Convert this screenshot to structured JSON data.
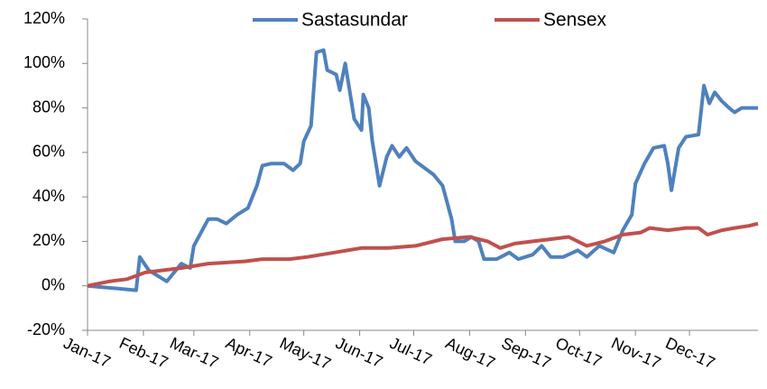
{
  "chart_data": {
    "type": "line",
    "xlim": [
      0,
      372
    ],
    "xticks": [
      {
        "value": 0,
        "label": "Jan-17"
      },
      {
        "value": 31,
        "label": "Feb-17"
      },
      {
        "value": 59,
        "label": "Mar-17"
      },
      {
        "value": 90,
        "label": "Apr-17"
      },
      {
        "value": 120,
        "label": "May-17"
      },
      {
        "value": 151,
        "label": "Jun-17"
      },
      {
        "value": 181,
        "label": "Jul-17"
      },
      {
        "value": 212,
        "label": "Aug-17"
      },
      {
        "value": 243,
        "label": "Sep-17"
      },
      {
        "value": 273,
        "label": "Oct-17"
      },
      {
        "value": 304,
        "label": "Nov-17"
      },
      {
        "value": 334,
        "label": "Dec-17"
      }
    ],
    "ylim": [
      -20,
      120
    ],
    "yticks": [
      {
        "value": -20,
        "label": "-20%"
      },
      {
        "value": 0,
        "label": "0%"
      },
      {
        "value": 20,
        "label": "20%"
      },
      {
        "value": 40,
        "label": "40%"
      },
      {
        "value": 60,
        "label": "60%"
      },
      {
        "value": 80,
        "label": "80%"
      },
      {
        "value": 100,
        "label": "100%"
      },
      {
        "value": 120,
        "label": "120%"
      }
    ],
    "legend": "top",
    "series": [
      {
        "name": "Sastasundar",
        "color": "#4f81bd",
        "x": [
          0,
          27,
          29,
          34,
          44,
          52,
          57,
          59,
          67,
          72,
          77,
          83,
          89,
          94,
          97,
          102,
          109,
          114,
          118,
          120,
          124,
          127,
          131,
          133,
          138,
          140,
          143,
          146,
          148,
          152,
          153,
          156,
          158,
          162,
          166,
          169,
          173,
          177,
          182,
          187,
          192,
          197,
          202,
          204,
          209,
          213,
          217,
          220,
          227,
          234,
          239,
          247,
          252,
          257,
          264,
          272,
          277,
          284,
          292,
          297,
          302,
          304,
          309,
          314,
          320,
          322,
          324,
          328,
          332,
          339,
          342,
          345,
          348,
          352,
          356,
          359,
          363,
          372
        ],
        "values": [
          0,
          -2,
          13,
          7,
          2,
          10,
          8,
          18,
          30,
          30,
          28,
          32,
          35,
          45,
          54,
          55,
          55,
          52,
          55,
          65,
          72,
          105,
          106,
          97,
          95,
          88,
          100,
          85,
          75,
          70,
          86,
          80,
          65,
          45,
          58,
          63,
          58,
          62,
          56,
          53,
          50,
          45,
          30,
          20,
          20,
          22,
          20,
          12,
          12,
          15,
          12,
          14,
          18,
          13,
          13,
          16,
          13,
          18,
          15,
          25,
          32,
          46,
          55,
          62,
          63,
          55,
          43,
          62,
          67,
          68,
          90,
          82,
          87,
          83,
          80,
          78,
          80,
          80
        ]
      },
      {
        "name": "Sensex",
        "color": "#c0504d",
        "x": [
          0,
          12,
          22,
          32,
          52,
          67,
          87,
          97,
          112,
          122,
          137,
          152,
          167,
          182,
          197,
          212,
          222,
          229,
          237,
          247,
          257,
          267,
          277,
          287,
          297,
          307,
          312,
          322,
          332,
          339,
          344,
          352,
          359,
          367,
          372
        ],
        "values": [
          0,
          2,
          3,
          6,
          8,
          10,
          11,
          12,
          12,
          13,
          15,
          17,
          17,
          18,
          21,
          22,
          20,
          17,
          19,
          20,
          21,
          22,
          18,
          20,
          23,
          24,
          26,
          25,
          26,
          26,
          23,
          25,
          26,
          27,
          28
        ]
      }
    ]
  }
}
